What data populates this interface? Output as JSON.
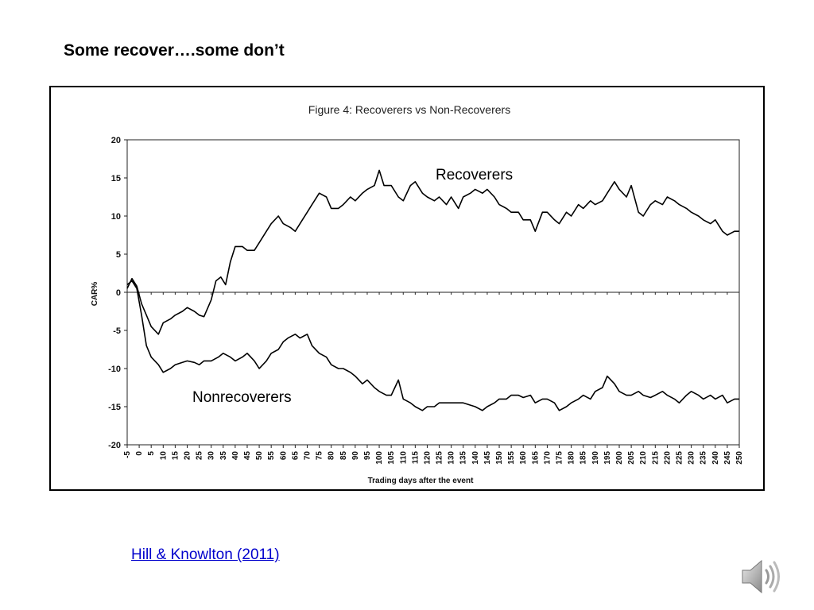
{
  "slide": {
    "title": "Some recover….some don’t",
    "citation": "Hill & Knowlton (2011)",
    "audio_icon": "speaker-icon"
  },
  "chart_data": {
    "type": "line",
    "title": "Figure 4: Recoverers vs Non-Recoverers",
    "xlabel": "Trading days after the event",
    "ylabel": "CAR%",
    "xlim": [
      -5,
      250
    ],
    "ylim": [
      -20,
      20
    ],
    "xticks": [
      -5,
      0,
      5,
      10,
      15,
      20,
      25,
      30,
      35,
      40,
      45,
      50,
      55,
      60,
      65,
      70,
      75,
      80,
      85,
      90,
      95,
      100,
      105,
      110,
      115,
      120,
      125,
      130,
      135,
      140,
      145,
      150,
      155,
      160,
      165,
      170,
      175,
      180,
      185,
      190,
      195,
      200,
      205,
      210,
      215,
      220,
      225,
      230,
      235,
      240,
      245,
      250
    ],
    "yticks": [
      20,
      15,
      10,
      5,
      0,
      -5,
      -10,
      -15,
      -20
    ],
    "grid": false,
    "series": [
      {
        "name": "Recoverers",
        "color": "#000000",
        "x": [
          -5,
          -3,
          -1,
          1,
          3,
          5,
          8,
          10,
          13,
          15,
          18,
          20,
          23,
          25,
          27,
          30,
          32,
          34,
          36,
          38,
          40,
          43,
          45,
          48,
          50,
          53,
          55,
          58,
          60,
          63,
          65,
          68,
          70,
          72,
          75,
          78,
          80,
          83,
          85,
          88,
          90,
          93,
          95,
          98,
          100,
          102,
          105,
          108,
          110,
          113,
          115,
          118,
          120,
          123,
          125,
          128,
          130,
          133,
          135,
          138,
          140,
          143,
          145,
          148,
          150,
          153,
          155,
          158,
          160,
          163,
          165,
          168,
          170,
          173,
          175,
          178,
          180,
          183,
          185,
          188,
          190,
          193,
          195,
          198,
          200,
          203,
          205,
          208,
          210,
          213,
          215,
          218,
          220,
          223,
          225,
          228,
          230,
          233,
          235,
          238,
          240,
          243,
          245,
          248,
          250
        ],
        "y": [
          0.5,
          1.8,
          0.8,
          -1.5,
          -3.0,
          -4.5,
          -5.5,
          -4.0,
          -3.5,
          -3.0,
          -2.5,
          -2.0,
          -2.5,
          -3.0,
          -3.2,
          -1.0,
          1.5,
          2.0,
          1.0,
          4.0,
          6.0,
          6.0,
          5.5,
          5.5,
          6.5,
          8.0,
          9.0,
          10.0,
          9.0,
          8.5,
          8.0,
          9.5,
          10.5,
          11.5,
          13.0,
          12.5,
          11.0,
          11.0,
          11.5,
          12.5,
          12.0,
          13.0,
          13.5,
          14.0,
          16.0,
          14.0,
          14.0,
          12.5,
          12.0,
          14.0,
          14.5,
          13.0,
          12.5,
          12.0,
          12.5,
          11.5,
          12.5,
          11.0,
          12.5,
          13.0,
          13.5,
          13.0,
          13.5,
          12.5,
          11.5,
          11.0,
          10.5,
          10.5,
          9.5,
          9.5,
          8.0,
          10.5,
          10.5,
          9.5,
          9.0,
          10.5,
          10.0,
          11.5,
          11.0,
          12.0,
          11.5,
          12.0,
          13.0,
          14.5,
          13.5,
          12.5,
          14.0,
          10.5,
          10.0,
          11.5,
          12.0,
          11.5,
          12.5,
          12.0,
          11.5,
          11.0,
          10.5,
          10.0,
          9.5,
          9.0,
          9.5,
          8.0,
          7.5,
          8.0,
          8.0
        ]
      },
      {
        "name": "Nonrecoverers",
        "color": "#000000",
        "x": [
          -5,
          -3,
          -1,
          1,
          3,
          5,
          8,
          10,
          13,
          15,
          18,
          20,
          23,
          25,
          27,
          30,
          33,
          35,
          38,
          40,
          43,
          45,
          48,
          50,
          53,
          55,
          58,
          60,
          62,
          65,
          67,
          70,
          72,
          75,
          78,
          80,
          83,
          85,
          88,
          90,
          93,
          95,
          98,
          100,
          103,
          105,
          108,
          110,
          113,
          115,
          118,
          120,
          123,
          125,
          128,
          130,
          133,
          135,
          138,
          140,
          143,
          145,
          148,
          150,
          153,
          155,
          158,
          160,
          163,
          165,
          168,
          170,
          173,
          175,
          178,
          180,
          183,
          185,
          188,
          190,
          193,
          195,
          198,
          200,
          203,
          205,
          208,
          210,
          213,
          215,
          218,
          220,
          223,
          225,
          228,
          230,
          233,
          235,
          238,
          240,
          243,
          245,
          248,
          250
        ],
        "y": [
          1.0,
          1.5,
          0.5,
          -3.0,
          -7.0,
          -8.5,
          -9.5,
          -10.5,
          -10.0,
          -9.5,
          -9.2,
          -9.0,
          -9.2,
          -9.5,
          -9.0,
          -9.0,
          -8.5,
          -8.0,
          -8.5,
          -9.0,
          -8.5,
          -8.0,
          -9.0,
          -10.0,
          -9.0,
          -8.0,
          -7.5,
          -6.5,
          -6.0,
          -5.5,
          -6.0,
          -5.5,
          -7.0,
          -8.0,
          -8.5,
          -9.5,
          -10.0,
          -10.0,
          -10.5,
          -11.0,
          -12.0,
          -11.5,
          -12.5,
          -13.0,
          -13.5,
          -13.5,
          -11.5,
          -14.0,
          -14.5,
          -15.0,
          -15.5,
          -15.0,
          -15.0,
          -14.5,
          -14.5,
          -14.5,
          -14.5,
          -14.5,
          -14.8,
          -15.0,
          -15.5,
          -15.0,
          -14.5,
          -14.0,
          -14.0,
          -13.5,
          -13.5,
          -13.8,
          -13.5,
          -14.5,
          -14.0,
          -14.0,
          -14.5,
          -15.5,
          -15.0,
          -14.5,
          -14.0,
          -13.5,
          -14.0,
          -13.0,
          -12.5,
          -11.0,
          -12.0,
          -13.0,
          -13.5,
          -13.5,
          -13.0,
          -13.5,
          -13.8,
          -13.5,
          -13.0,
          -13.5,
          -14.0,
          -14.5,
          -13.5,
          -13.0,
          -13.5,
          -14.0,
          -13.5,
          -14.0,
          -13.5,
          -14.5,
          -14.0,
          -14.0
        ]
      }
    ],
    "annotations": [
      "Recoverers",
      "Nonrecoverers"
    ]
  }
}
